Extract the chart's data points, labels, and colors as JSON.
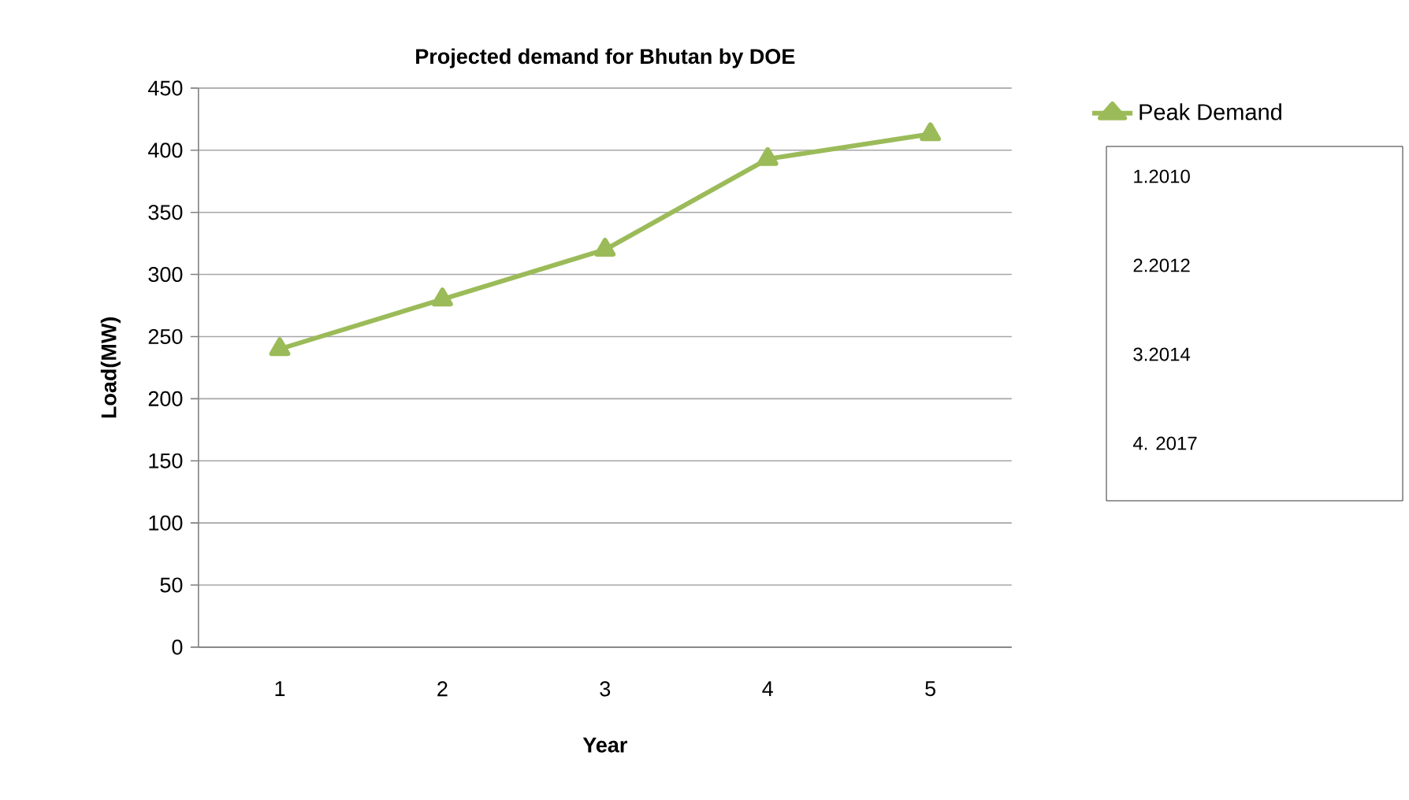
{
  "chart_data": {
    "type": "line",
    "title": "Projected demand for Bhutan by DOE",
    "xlabel": "Year",
    "ylabel": "Load(MW)",
    "categories": [
      "1",
      "2",
      "3",
      "4",
      "5"
    ],
    "series": [
      {
        "name": "Peak Demand",
        "color": "#9bbb59",
        "values": [
          240,
          280,
          320,
          393,
          413
        ]
      }
    ],
    "ylim": [
      0,
      450
    ],
    "yticks": [
      0,
      50,
      100,
      150,
      200,
      250,
      300,
      350,
      400,
      450
    ],
    "grid": "y",
    "legend": "top right",
    "marker": "triangle",
    "line_style": "solid",
    "annotations": [
      "1.2010",
      "2.2012",
      "3.2014",
      "4. 2017"
    ]
  }
}
